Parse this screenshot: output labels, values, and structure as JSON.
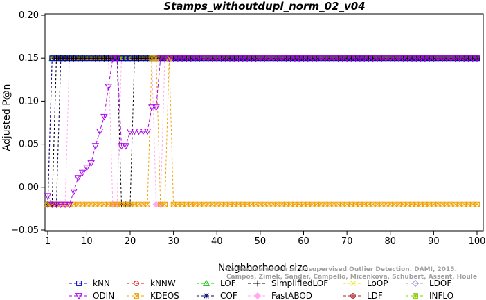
{
  "chart_data": {
    "type": "line",
    "title": "Stamps_withoutdupl_norm_02_v04",
    "xlabel": "Neighborhood size",
    "ylabel": "Adjusted P@n",
    "xlim": [
      1,
      100
    ],
    "ylim": [
      -0.05,
      0.2
    ],
    "x_ticks": [
      1,
      10,
      20,
      30,
      40,
      50,
      60,
      70,
      80,
      90,
      100
    ],
    "y_ticks": [
      -0.05,
      0.0,
      0.05,
      0.1,
      0.15,
      0.2
    ],
    "y_tick_labels": [
      "−0.05",
      "0.00",
      "0.05",
      "0.10",
      "0.15",
      "0.20"
    ],
    "grid": false,
    "legend_position": "bottom",
    "watermark": [
      "Campos, Zimek, Sander, Campello, Micenkova, Schubert, Assent, Houle",
      "On the Evaluation of Unsupervised Outlier Detection. DAMI, 2015."
    ],
    "series": [
      {
        "name": "kNN",
        "color": "#0000cc",
        "marker": "square",
        "dash": "3,3",
        "points": [
          [
            1,
            -0.02
          ],
          [
            2,
            0.15
          ],
          [
            100,
            0.15
          ]
        ]
      },
      {
        "name": "kNNW",
        "color": "#dd0000",
        "marker": "circle",
        "dash": "3,3",
        "points": [
          [
            1,
            -0.02
          ],
          [
            2,
            0.15
          ],
          [
            100,
            0.15
          ]
        ]
      },
      {
        "name": "LOF",
        "color": "#00cc00",
        "marker": "triangle",
        "dash": "3,3",
        "points": [
          [
            1,
            -0.02
          ],
          [
            2,
            0.15
          ],
          [
            100,
            0.15
          ]
        ]
      },
      {
        "name": "SimplifiedLOF",
        "color": "#000000",
        "marker": "plus",
        "dash": "3,3",
        "points": [
          [
            1,
            -0.02
          ],
          [
            2,
            -0.02
          ],
          [
            3,
            0.15
          ],
          [
            17,
            0.15
          ],
          [
            18,
            -0.02
          ],
          [
            19,
            -0.02
          ],
          [
            20,
            -0.02
          ],
          [
            21,
            0.15
          ],
          [
            100,
            0.15
          ]
        ]
      },
      {
        "name": "LoOP",
        "color": "#e6e600",
        "marker": "cross",
        "dash": "3,3",
        "points": [
          [
            1,
            -0.02
          ],
          [
            2,
            -0.02
          ],
          [
            3,
            -0.02
          ],
          [
            4,
            0.15
          ],
          [
            100,
            0.15
          ]
        ]
      },
      {
        "name": "LDOF",
        "color": "#9999dd",
        "marker": "diamond",
        "dash": "3,3",
        "points": [
          [
            1,
            -0.02
          ],
          [
            2,
            -0.02
          ],
          [
            3,
            -0.02
          ],
          [
            4,
            0.15
          ],
          [
            100,
            0.15
          ]
        ]
      },
      {
        "name": "ODIN",
        "color": "#aa00ee",
        "marker": "triangle-down",
        "dash": "5,3",
        "points": [
          [
            1,
            -0.01
          ],
          [
            2,
            -0.02
          ],
          [
            3,
            -0.02
          ],
          [
            4,
            -0.02
          ],
          [
            5,
            -0.02
          ],
          [
            6,
            -0.02
          ],
          [
            7,
            -0.005
          ],
          [
            8,
            0.011
          ],
          [
            9,
            0.017
          ],
          [
            10,
            0.023
          ],
          [
            11,
            0.028
          ],
          [
            12,
            0.048
          ],
          [
            13,
            0.065
          ],
          [
            14,
            0.082
          ],
          [
            15,
            0.117
          ],
          [
            16,
            0.15
          ],
          [
            17,
            0.15
          ],
          [
            18,
            0.048
          ],
          [
            19,
            0.048
          ],
          [
            20,
            0.065
          ],
          [
            21,
            0.065
          ],
          [
            22,
            0.065
          ],
          [
            23,
            0.065
          ],
          [
            24,
            0.065
          ],
          [
            25,
            0.093
          ],
          [
            26,
            0.093
          ],
          [
            27,
            0.15
          ],
          [
            100,
            0.15
          ]
        ]
      },
      {
        "name": "KDEOS",
        "color": "#f0a000",
        "marker": "square-x",
        "dash": "3,3",
        "points": [
          [
            1,
            -0.02
          ],
          [
            24,
            -0.02
          ],
          [
            25,
            0.15
          ],
          [
            26,
            0.15
          ],
          [
            27,
            -0.02
          ],
          [
            28,
            -0.02
          ],
          [
            29,
            0.15
          ],
          [
            30,
            -0.02
          ],
          [
            100,
            -0.02
          ]
        ]
      },
      {
        "name": "COF",
        "color": "#000066",
        "marker": "star",
        "dash": "3,3",
        "points": [
          [
            1,
            -0.02
          ],
          [
            2,
            -0.02
          ],
          [
            3,
            -0.02
          ],
          [
            4,
            0.15
          ],
          [
            100,
            0.15
          ]
        ]
      },
      {
        "name": "FastABOD",
        "color": "#ffaaee",
        "marker": "diamond-fill",
        "dash": "3,3",
        "points": [
          [
            1,
            -0.02
          ],
          [
            2,
            -0.02
          ],
          [
            3,
            -0.02
          ],
          [
            4,
            -0.02
          ],
          [
            5,
            -0.02
          ],
          [
            6,
            0.15
          ],
          [
            15,
            0.15
          ],
          [
            16,
            -0.02
          ],
          [
            17,
            -0.02
          ],
          [
            18,
            0.15
          ],
          [
            25,
            0.15
          ],
          [
            26,
            -0.02
          ],
          [
            27,
            -0.02
          ],
          [
            28,
            0.15
          ],
          [
            100,
            0.15
          ]
        ]
      },
      {
        "name": "LDF",
        "color": "#aa2222",
        "marker": "circle-plus",
        "dash": "3,3",
        "points": [
          [
            1,
            -0.02
          ],
          [
            2,
            -0.02
          ],
          [
            3,
            0.15
          ],
          [
            100,
            0.15
          ]
        ]
      },
      {
        "name": "INFLO",
        "color": "#88cc00",
        "marker": "square-star",
        "dash": "3,3",
        "points": [
          [
            1,
            -0.02
          ],
          [
            2,
            0.15
          ],
          [
            100,
            0.15
          ]
        ]
      }
    ]
  }
}
